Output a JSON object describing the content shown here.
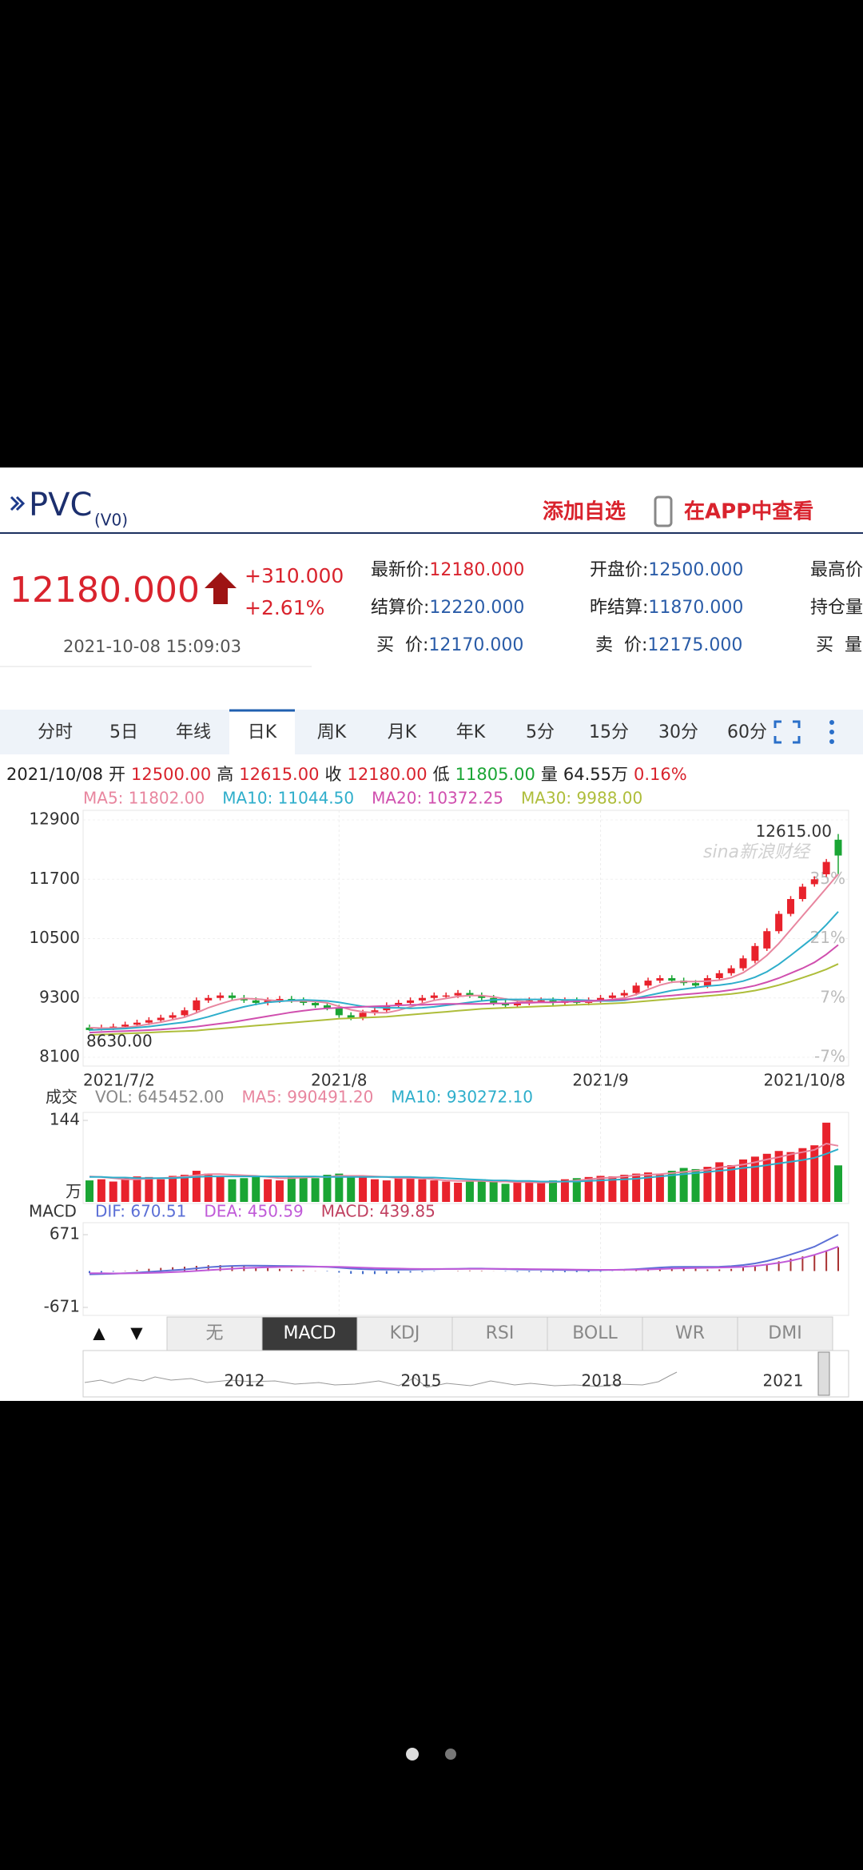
{
  "header": {
    "symbol": "PVC",
    "contract": "(V0)",
    "add_watchlist": "添加自选",
    "open_app": "在APP中查看"
  },
  "quote": {
    "price": "12180.000",
    "change": "+310.000",
    "change_pct": "+2.61%",
    "time": "2021-10-08 15:09:03",
    "fields": [
      [
        {
          "label": "最新价:",
          "value": "12180.000",
          "color": "#d9232d"
        },
        {
          "label": "开盘价:",
          "value": "12500.000",
          "color": "#2a5ca8"
        },
        {
          "label": "最高价"
        }
      ],
      [
        {
          "label": "结算价:",
          "value": "12220.000",
          "color": "#2a5ca8"
        },
        {
          "label": "昨结算:",
          "value": "11870.000",
          "color": "#2a5ca8"
        },
        {
          "label": "持仓量"
        }
      ],
      [
        {
          "label": " 买  价:",
          "value": "12170.000",
          "color": "#2a5ca8"
        },
        {
          "label": " 卖  价:",
          "value": "12175.000",
          "color": "#2a5ca8"
        },
        {
          "label": " 买  量"
        }
      ]
    ]
  },
  "tabs": [
    "分时",
    "5日",
    "年线",
    "日K",
    "周K",
    "月K",
    "年K",
    "5分",
    "15分",
    "30分",
    "60分"
  ],
  "active_tab": 3,
  "info_line": [
    {
      "text": "2021/10/08",
      "color": "#222"
    },
    {
      "text": "开",
      "color": "#222"
    },
    {
      "text": "12500.00",
      "color": "#d9232d"
    },
    {
      "text": "高",
      "color": "#222"
    },
    {
      "text": "12615.00",
      "color": "#d9232d"
    },
    {
      "text": "收",
      "color": "#222"
    },
    {
      "text": "12180.00",
      "color": "#d9232d"
    },
    {
      "text": "低",
      "color": "#222"
    },
    {
      "text": "11805.00",
      "color": "#1aa534"
    },
    {
      "text": "量",
      "color": "#222"
    },
    {
      "text": "64.55万",
      "color": "#222"
    },
    {
      "text": "0.16%",
      "color": "#d9232d"
    }
  ],
  "watermark": "sina新浪财经",
  "chart_data": [
    {
      "type": "candlestick",
      "up_color": "#e8222c",
      "down_color": "#1aa534",
      "categories": [
        "2021/7/2",
        null,
        null,
        null,
        null,
        null,
        null,
        null,
        null,
        null,
        null,
        null,
        null,
        null,
        null,
        null,
        null,
        null,
        null,
        null,
        null,
        "2021/8",
        null,
        null,
        null,
        null,
        null,
        null,
        null,
        null,
        null,
        null,
        null,
        null,
        null,
        null,
        null,
        null,
        null,
        null,
        null,
        null,
        null,
        "2021/9",
        null,
        null,
        null,
        null,
        null,
        null,
        null,
        null,
        null,
        null,
        null,
        null,
        null,
        null,
        null,
        null,
        null,
        null,
        null,
        "2021/10/8"
      ],
      "open": [
        8700,
        8650,
        8700,
        8720,
        8760,
        8800,
        8850,
        8900,
        8950,
        9050,
        9250,
        9300,
        9350,
        9300,
        9250,
        9200,
        9250,
        9280,
        9250,
        9200,
        9150,
        9100,
        8950,
        8900,
        9000,
        9050,
        9150,
        9200,
        9250,
        9300,
        9350,
        9350,
        9400,
        9350,
        9300,
        9200,
        9150,
        9200,
        9250,
        9250,
        9200,
        9250,
        9200,
        9250,
        9300,
        9350,
        9400,
        9550,
        9650,
        9700,
        9650,
        9600,
        9550,
        9700,
        9800,
        9900,
        10050,
        10300,
        10650,
        11000,
        11300,
        11600,
        11800,
        12500
      ],
      "high": [
        8760,
        8760,
        8780,
        8820,
        8860,
        8910,
        8960,
        9010,
        9110,
        9310,
        9360,
        9410,
        9410,
        9360,
        9310,
        9310,
        9340,
        9340,
        9310,
        9260,
        9210,
        9160,
        9010,
        9060,
        9110,
        9210,
        9260,
        9310,
        9360,
        9410,
        9410,
        9460,
        9460,
        9410,
        9360,
        9260,
        9260,
        9310,
        9310,
        9310,
        9310,
        9310,
        9310,
        9360,
        9410,
        9460,
        9610,
        9710,
        9760,
        9760,
        9710,
        9660,
        9760,
        9860,
        9960,
        10160,
        10410,
        10710,
        11060,
        11360,
        11610,
        11760,
        12110,
        12615
      ],
      "low": [
        8630,
        8640,
        8650,
        8670,
        8710,
        8750,
        8800,
        8850,
        8900,
        9000,
        9200,
        9250,
        9250,
        9200,
        9150,
        9150,
        9200,
        9200,
        9150,
        9100,
        9050,
        8900,
        8850,
        8850,
        8950,
        9000,
        9100,
        9150,
        9200,
        9250,
        9300,
        9300,
        9300,
        9250,
        9150,
        9100,
        9100,
        9150,
        9200,
        9150,
        9150,
        9150,
        9150,
        9200,
        9250,
        9300,
        9350,
        9500,
        9600,
        9600,
        9550,
        9500,
        9500,
        9650,
        9750,
        9850,
        10000,
        10250,
        10600,
        10950,
        11250,
        11550,
        11750,
        11805
      ],
      "close": [
        8650,
        8700,
        8720,
        8760,
        8800,
        8850,
        8900,
        8950,
        9050,
        9250,
        9300,
        9350,
        9300,
        9250,
        9200,
        9250,
        9280,
        9250,
        9200,
        9150,
        9100,
        8950,
        8900,
        9000,
        9050,
        9150,
        9200,
        9250,
        9300,
        9350,
        9350,
        9400,
        9350,
        9300,
        9200,
        9150,
        9200,
        9250,
        9250,
        9200,
        9250,
        9200,
        9250,
        9300,
        9350,
        9400,
        9550,
        9650,
        9700,
        9650,
        9600,
        9550,
        9700,
        9800,
        9900,
        10100,
        10350,
        10650,
        11000,
        11300,
        11550,
        11700,
        12050,
        12180
      ],
      "lines": [
        {
          "name": "MA5: 11802.00",
          "color": "#e8869f",
          "values": [
            8700,
            8690,
            8690,
            8700,
            8730,
            8770,
            8810,
            8860,
            8910,
            9000,
            9100,
            9180,
            9250,
            9290,
            9280,
            9260,
            9240,
            9240,
            9240,
            9230,
            9200,
            9130,
            9060,
            9020,
            9000,
            9000,
            9050,
            9120,
            9190,
            9250,
            9290,
            9330,
            9350,
            9350,
            9320,
            9280,
            9240,
            9220,
            9210,
            9210,
            9230,
            9230,
            9230,
            9240,
            9270,
            9300,
            9370,
            9470,
            9560,
            9620,
            9630,
            9630,
            9640,
            9660,
            9710,
            9810,
            9970,
            10160,
            10400,
            10680,
            10960,
            11240,
            11520,
            11802
          ]
        },
        {
          "name": "MA10: 11044.50",
          "color": "#2eaecb",
          "values": [
            8650,
            8660,
            8670,
            8680,
            8700,
            8720,
            8750,
            8780,
            8810,
            8860,
            8920,
            8990,
            9060,
            9120,
            9170,
            9210,
            9230,
            9250,
            9260,
            9250,
            9240,
            9210,
            9170,
            9130,
            9110,
            9100,
            9100,
            9090,
            9100,
            9120,
            9150,
            9180,
            9210,
            9240,
            9260,
            9270,
            9270,
            9270,
            9270,
            9270,
            9260,
            9260,
            9250,
            9240,
            9240,
            9250,
            9300,
            9350,
            9400,
            9450,
            9480,
            9510,
            9540,
            9560,
            9590,
            9640,
            9720,
            9830,
            9980,
            10160,
            10350,
            10540,
            10780,
            11044.5
          ]
        },
        {
          "name": "MA20: 10372.25",
          "color": "#d04fae",
          "values": [
            8600,
            8610,
            8620,
            8630,
            8640,
            8650,
            8660,
            8680,
            8700,
            8720,
            8750,
            8780,
            8810,
            8850,
            8890,
            8930,
            8970,
            9010,
            9040,
            9070,
            9090,
            9100,
            9110,
            9120,
            9130,
            9140,
            9150,
            9160,
            9160,
            9170,
            9180,
            9180,
            9180,
            9180,
            9190,
            9190,
            9200,
            9200,
            9210,
            9210,
            9220,
            9230,
            9240,
            9250,
            9260,
            9270,
            9290,
            9310,
            9330,
            9350,
            9370,
            9390,
            9410,
            9430,
            9460,
            9500,
            9550,
            9620,
            9700,
            9800,
            9900,
            10020,
            10180,
            10372.25
          ]
        },
        {
          "name": "MA30: 9988.00",
          "color": "#aebd3a",
          "values": [
            8550,
            8560,
            8570,
            8580,
            8590,
            8600,
            8610,
            8620,
            8630,
            8640,
            8660,
            8680,
            8700,
            8720,
            8740,
            8760,
            8780,
            8800,
            8820,
            8840,
            8860,
            8880,
            8890,
            8900,
            8910,
            8920,
            8940,
            8960,
            8980,
            9000,
            9020,
            9040,
            9060,
            9080,
            9090,
            9100,
            9110,
            9120,
            9130,
            9140,
            9150,
            9160,
            9170,
            9180,
            9190,
            9200,
            9220,
            9240,
            9260,
            9280,
            9300,
            9320,
            9340,
            9360,
            9380,
            9410,
            9450,
            9500,
            9560,
            9630,
            9710,
            9790,
            9880,
            9988
          ]
        }
      ],
      "annotations": [
        {
          "text": "12615.00",
          "value": 12615
        },
        {
          "text": "8630.00",
          "value": 8630
        }
      ],
      "ylim": [
        8100,
        12900
      ],
      "yticks": [
        8100,
        9300,
        10500,
        11700,
        12900
      ],
      "y2lim": [
        -6.9,
        48.3
      ],
      "y2ticks": [
        {
          "value": -6.9,
          "label": "-7%"
        },
        {
          "value": 6.9,
          "label": "7%"
        },
        {
          "value": 20.7,
          "label": "21%"
        },
        {
          "value": 34.5,
          "label": "35%"
        }
      ],
      "grid": true
    },
    {
      "type": "bar",
      "title": "成交",
      "name": "VOL: 645452.00",
      "unit": "万",
      "values": [
        38,
        40,
        36,
        42,
        45,
        44,
        40,
        46,
        48,
        55,
        50,
        44,
        40,
        42,
        45,
        40,
        38,
        46,
        44,
        42,
        48,
        50,
        46,
        44,
        40,
        38,
        42,
        44,
        40,
        38,
        36,
        34,
        38,
        40,
        36,
        32,
        34,
        36,
        34,
        38,
        40,
        42,
        44,
        46,
        45,
        48,
        50,
        52,
        48,
        55,
        60,
        58,
        62,
        70,
        65,
        75,
        80,
        85,
        90,
        88,
        95,
        100,
        140,
        64.55
      ],
      "lines": [
        {
          "name": "MA5: 990491.20",
          "color": "#e8869f",
          "values": [
            45,
            44,
            42,
            40,
            40,
            41,
            42,
            43,
            45,
            47,
            49,
            49,
            48,
            47,
            46,
            44,
            42,
            42,
            43,
            44,
            44,
            46,
            46,
            46,
            45,
            44,
            42,
            42,
            42,
            40,
            38,
            37,
            37,
            37,
            36,
            36,
            35,
            35,
            34,
            35,
            36,
            38,
            40,
            42,
            43,
            45,
            47,
            48,
            49,
            51,
            53,
            55,
            57,
            61,
            63,
            66,
            70,
            75,
            79,
            84,
            88,
            92,
            103,
            99.05
          ]
        },
        {
          "name": "MA10: 930272.10",
          "color": "#2eaecb",
          "values": [
            44,
            44,
            43,
            43,
            42,
            42,
            42,
            42,
            43,
            44,
            45,
            45,
            45,
            45,
            45,
            45,
            45,
            45,
            45,
            45,
            44,
            44,
            44,
            44,
            44,
            44,
            44,
            44,
            43,
            43,
            42,
            41,
            40,
            39,
            38,
            38,
            37,
            37,
            36,
            36,
            36,
            36,
            37,
            38,
            39,
            40,
            41,
            43,
            45,
            47,
            49,
            51,
            53,
            55,
            57,
            60,
            62,
            65,
            68,
            71,
            74,
            78,
            85,
            93.03
          ]
        }
      ],
      "ylim": [
        0,
        144
      ],
      "yticks": [
        144
      ]
    },
    {
      "type": "macd",
      "title": "MACD",
      "lines": [
        {
          "name": "DIF: 670.51",
          "color": "#5b6fd6",
          "values": [
            -60,
            -55,
            -50,
            -40,
            -30,
            -15,
            0,
            15,
            30,
            50,
            70,
            85,
            95,
            100,
            100,
            98,
            95,
            92,
            88,
            82,
            75,
            62,
            45,
            35,
            28,
            25,
            25,
            27,
            30,
            34,
            38,
            42,
            45,
            45,
            42,
            36,
            30,
            27,
            25,
            22,
            18,
            16,
            15,
            16,
            20,
            25,
            35,
            50,
            65,
            75,
            78,
            78,
            76,
            80,
            90,
            110,
            140,
            185,
            240,
            305,
            375,
            450,
            560,
            670.51
          ]
        },
        {
          "name": "DEA: 450.59",
          "color": "#c05ad8",
          "values": [
            -40,
            -42,
            -44,
            -43,
            -41,
            -36,
            -29,
            -20,
            -10,
            2,
            16,
            30,
            43,
            54,
            63,
            70,
            75,
            78,
            80,
            80,
            79,
            76,
            70,
            63,
            56,
            50,
            45,
            41,
            39,
            38,
            38,
            39,
            40,
            41,
            41,
            40,
            38,
            36,
            34,
            31,
            29,
            26,
            24,
            22,
            22,
            23,
            25,
            30,
            37,
            45,
            51,
            57,
            61,
            65,
            70,
            78,
            95,
            120,
            150,
            190,
            240,
            300,
            370,
            450.59
          ]
        }
      ],
      "bars": {
        "name": "MACD: 439.85",
        "up_color": "#a83232",
        "down_color": "#3a66c8",
        "values": [
          -40,
          -26,
          -12,
          6,
          22,
          42,
          58,
          70,
          80,
          96,
          108,
          110,
          104,
          92,
          74,
          56,
          40,
          28,
          16,
          4,
          -8,
          -28,
          -50,
          -56,
          -56,
          -50,
          -40,
          -28,
          -18,
          -8,
          0,
          6,
          10,
          8,
          2,
          -8,
          -16,
          -18,
          -18,
          -18,
          -22,
          -20,
          -18,
          -12,
          -4,
          4,
          20,
          40,
          56,
          60,
          54,
          42,
          30,
          30,
          40,
          64,
          90,
          130,
          180,
          230,
          270,
          300,
          380,
          439.85
        ]
      },
      "ylim": [
        -671,
        671
      ],
      "yticks": [
        671,
        -671
      ]
    }
  ],
  "indicator_arrows": [
    "▲",
    "▼"
  ],
  "indicator_tabs": [
    "无",
    "MACD",
    "KDJ",
    "RSI",
    "BOLL",
    "WR",
    "DMI"
  ],
  "active_indicator": 1,
  "navigator": {
    "years": [
      "2012",
      "2015",
      "2018",
      "2021"
    ]
  }
}
